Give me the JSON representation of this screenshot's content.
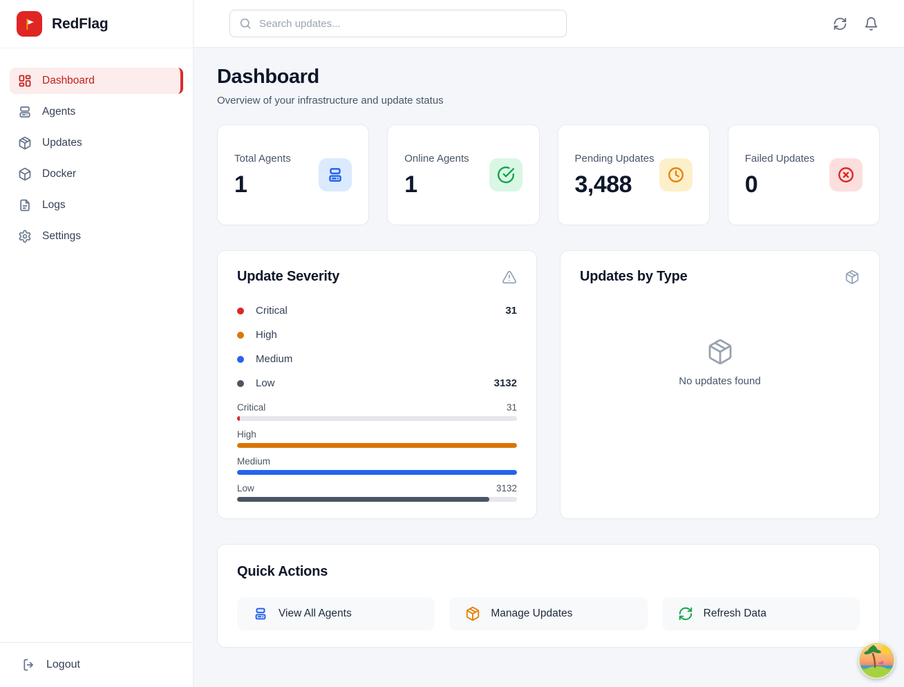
{
  "brand": {
    "name": "RedFlag",
    "logo_color": "#e02525"
  },
  "sidebar": {
    "items": [
      {
        "label": "Dashboard",
        "icon": "dashboard-icon",
        "active": true
      },
      {
        "label": "Agents",
        "icon": "server-icon",
        "active": false
      },
      {
        "label": "Updates",
        "icon": "package-icon",
        "active": false
      },
      {
        "label": "Docker",
        "icon": "box-icon",
        "active": false
      },
      {
        "label": "Logs",
        "icon": "file-text-icon",
        "active": false
      },
      {
        "label": "Settings",
        "icon": "gear-icon",
        "active": false
      }
    ],
    "logout_label": "Logout"
  },
  "header": {
    "search_placeholder": "Search updates..."
  },
  "page": {
    "title": "Dashboard",
    "subtitle": "Overview of your infrastructure and update status"
  },
  "stats": [
    {
      "label": "Total Agents",
      "value": "1",
      "icon": "server-icon",
      "accent": "#2563eb",
      "bg": "#dbeafe"
    },
    {
      "label": "Online Agents",
      "value": "1",
      "icon": "check-circle-icon",
      "accent": "#16a34a",
      "bg": "#d9f7e4"
    },
    {
      "label": "Pending Updates",
      "value": "3,488",
      "icon": "clock-icon",
      "accent": "#e8820e",
      "bg": "#fdf0c9"
    },
    {
      "label": "Failed Updates",
      "value": "0",
      "icon": "x-circle-icon",
      "accent": "#dc2626",
      "bg": "#fcdede"
    }
  ],
  "severity_panel": {
    "title": "Update Severity",
    "legend": [
      {
        "label": "Critical",
        "value": "31",
        "color": "#dc2626"
      },
      {
        "label": "High",
        "value": "",
        "color": "#d97706"
      },
      {
        "label": "Medium",
        "value": "",
        "color": "#2563eb"
      },
      {
        "label": "Low",
        "value": "3132",
        "color": "#4b5563"
      }
    ],
    "bars": [
      {
        "label": "Critical",
        "value": "31",
        "color": "#dc2626",
        "percent": 1
      },
      {
        "label": "High",
        "value": "",
        "color": "#d97706",
        "percent": 100
      },
      {
        "label": "Medium",
        "value": "",
        "color": "#2563eb",
        "percent": 100
      },
      {
        "label": "Low",
        "value": "3132",
        "color": "#4b5563",
        "percent": 90
      }
    ]
  },
  "updates_panel": {
    "title": "Updates by Type",
    "empty_text": "No updates found"
  },
  "quick_actions": {
    "title": "Quick Actions",
    "actions": [
      {
        "label": "View All Agents",
        "icon": "server-icon",
        "color": "#2563eb"
      },
      {
        "label": "Manage Updates",
        "icon": "package-icon",
        "color": "#e8820e"
      },
      {
        "label": "Refresh Data",
        "icon": "refresh-icon",
        "color": "#16a34a"
      }
    ]
  }
}
